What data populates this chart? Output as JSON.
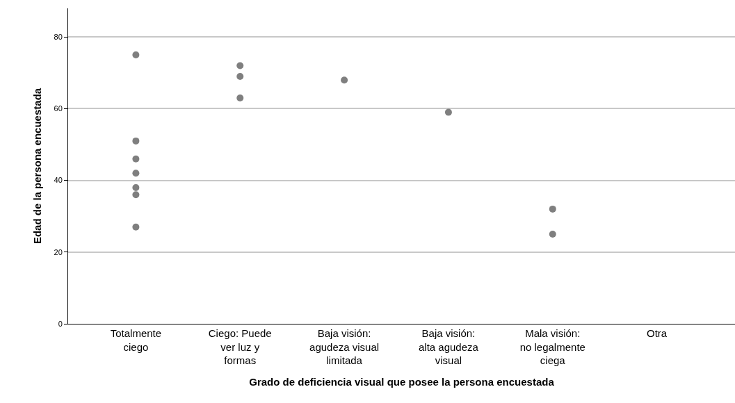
{
  "chart_data": {
    "type": "scatter",
    "xlabel": "Grado de deficiencia visual que posee la persona encuestada",
    "ylabel": "Edad de la persona encuestada",
    "categories": [
      "Totalmente ciego",
      "Ciego: Puede ver luz y formas",
      "Baja visión: agudeza visual limitada",
      "Baja visión: alta agudeza visual",
      "Mala visión: no legalmente ciega",
      "Otra"
    ],
    "series": [
      {
        "color": "#7f7f7f",
        "x": [
          "Totalmente ciego",
          "Totalmente ciego",
          "Totalmente ciego",
          "Totalmente ciego",
          "Totalmente ciego",
          "Totalmente ciego",
          "Totalmente ciego",
          "Ciego: Puede ver luz y formas",
          "Ciego: Puede ver luz y formas",
          "Ciego: Puede ver luz y formas",
          "Baja visión: agudeza visual limitada",
          "Baja visión: alta agudeza visual",
          "Mala visión: no legalmente ciega",
          "Mala visión: no legalmente ciega"
        ],
        "values": [
          75,
          51,
          46,
          42,
          38,
          36,
          27,
          72,
          69,
          63,
          68,
          59,
          32,
          25
        ]
      }
    ],
    "ylim": [
      0,
      88
    ],
    "yticks": [
      0,
      20,
      40,
      60,
      80
    ],
    "grid": "y",
    "marker": "circle"
  }
}
